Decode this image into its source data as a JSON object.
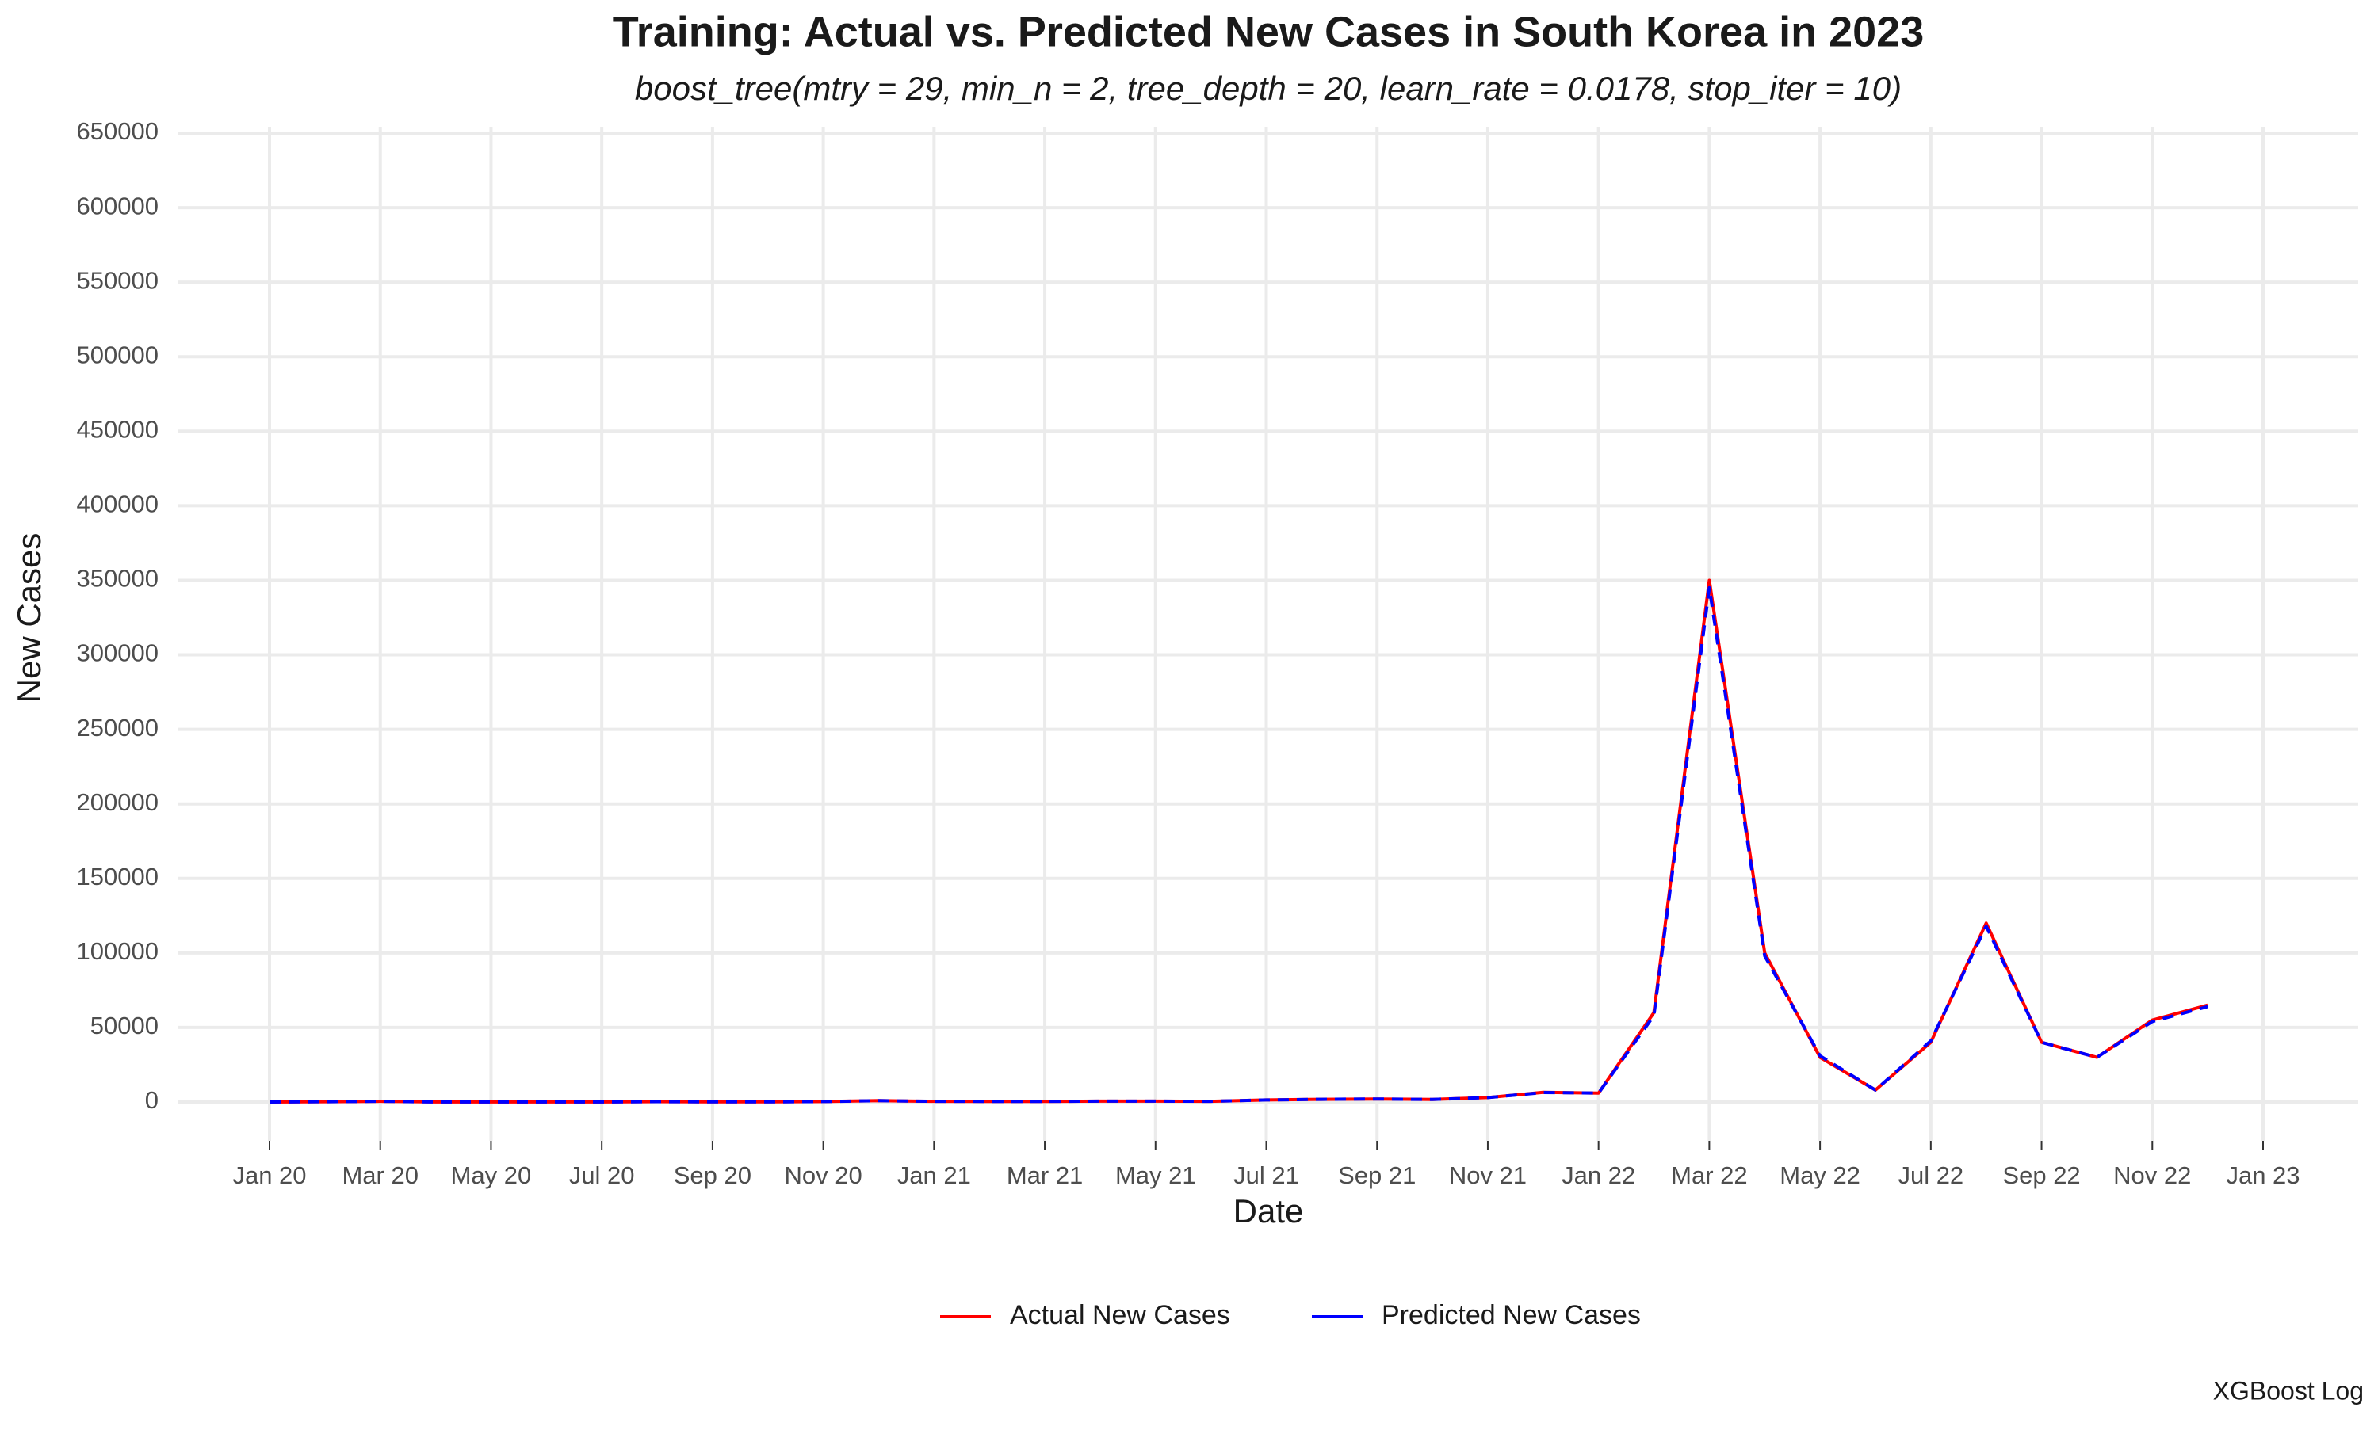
{
  "chart_data": {
    "type": "line",
    "title": "Training: Actual vs. Predicted New Cases in South Korea in 2023",
    "subtitle": "boost_tree(mtry = 29, min_n = 2, tree_depth = 20, learn_rate = 0.0178, stop_iter = 10)",
    "x_label": "Date",
    "y_label": "New Cases",
    "caption": "XGBoost Log",
    "x": [
      "2020-01",
      "2020-02",
      "2020-03",
      "2020-04",
      "2020-05",
      "2020-06",
      "2020-07",
      "2020-08",
      "2020-09",
      "2020-10",
      "2020-11",
      "2020-12",
      "2021-01",
      "2021-02",
      "2021-03",
      "2021-04",
      "2021-05",
      "2021-06",
      "2021-07",
      "2021-08",
      "2021-09",
      "2021-10",
      "2021-11",
      "2021-12",
      "2022-01",
      "2022-02",
      "2022-03",
      "2022-04",
      "2022-05",
      "2022-06",
      "2022-07",
      "2022-08",
      "2022-09",
      "2022-10",
      "2022-11",
      "2022-12"
    ],
    "series": [
      {
        "name": "Actual New Cases",
        "color": "#ff0000",
        "dash": false,
        "values": [
          0,
          200,
          500,
          50,
          30,
          50,
          40,
          250,
          120,
          80,
          300,
          900,
          500,
          400,
          450,
          600,
          600,
          500,
          1400,
          1800,
          2000,
          1700,
          3000,
          6500,
          6000,
          60000,
          350000,
          100000,
          30000,
          8000,
          40000,
          120000,
          40000,
          30000,
          55000,
          65000
        ]
      },
      {
        "name": "Predicted New Cases",
        "color": "#0000ff",
        "dash": true,
        "values": [
          0,
          200,
          480,
          60,
          30,
          50,
          40,
          240,
          120,
          80,
          300,
          880,
          500,
          400,
          450,
          600,
          600,
          500,
          1400,
          1800,
          2000,
          1700,
          3000,
          6400,
          6000,
          58000,
          345000,
          98000,
          31000,
          8000,
          41000,
          118000,
          40000,
          30000,
          54000,
          64000
        ]
      }
    ],
    "xlim": [
      "2020-01",
      "2023-01"
    ],
    "xticks": [
      {
        "value": "2020-01",
        "label": "Jan 20"
      },
      {
        "value": "2020-03",
        "label": "Mar 20"
      },
      {
        "value": "2020-05",
        "label": "May 20"
      },
      {
        "value": "2020-07",
        "label": "Jul 20"
      },
      {
        "value": "2020-09",
        "label": "Sep 20"
      },
      {
        "value": "2020-11",
        "label": "Nov 20"
      },
      {
        "value": "2021-01",
        "label": "Jan 21"
      },
      {
        "value": "2021-03",
        "label": "Mar 21"
      },
      {
        "value": "2021-05",
        "label": "May 21"
      },
      {
        "value": "2021-07",
        "label": "Jul 21"
      },
      {
        "value": "2021-09",
        "label": "Sep 21"
      },
      {
        "value": "2021-11",
        "label": "Nov 21"
      },
      {
        "value": "2022-01",
        "label": "Jan 22"
      },
      {
        "value": "2022-03",
        "label": "Mar 22"
      },
      {
        "value": "2022-05",
        "label": "May 22"
      },
      {
        "value": "2022-07",
        "label": "Jul 22"
      },
      {
        "value": "2022-09",
        "label": "Sep 22"
      },
      {
        "value": "2022-11",
        "label": "Nov 22"
      },
      {
        "value": "2023-01",
        "label": "Jan 23"
      }
    ],
    "ylim": [
      0,
      650000
    ],
    "yticks": [
      0,
      50000,
      100000,
      150000,
      200000,
      250000,
      300000,
      350000,
      400000,
      450000,
      500000,
      550000,
      600000,
      650000
    ],
    "grid": true,
    "legend": "bottom"
  }
}
